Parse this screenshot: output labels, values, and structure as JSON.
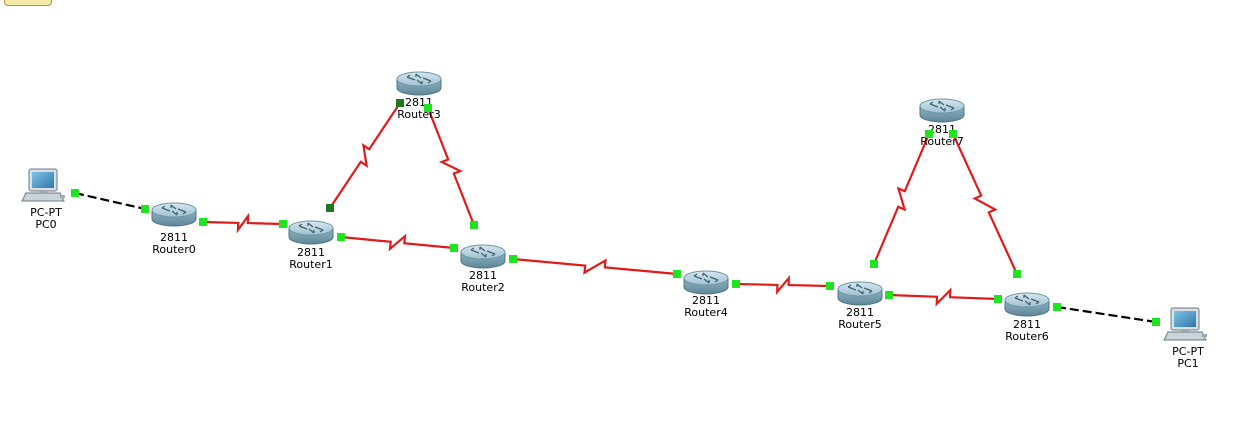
{
  "colors": {
    "serial_link": "#e11a1a",
    "ethernet_link": "#000000",
    "port_up": "#1ee61e",
    "port_dark": "#1f7a1f",
    "router_body": "#7fa7b9",
    "router_top": "#b9d3de",
    "pc_screen": "#3e8fc0"
  },
  "devices": [
    {
      "id": "pc0",
      "type": "pc",
      "icon": "pc-icon",
      "model": "PC-PT",
      "name": "PC0"
    },
    {
      "id": "router0",
      "type": "router",
      "icon": "router-icon",
      "model": "2811",
      "name": "Router0"
    },
    {
      "id": "router1",
      "type": "router",
      "icon": "router-icon",
      "model": "2811",
      "name": "Router1"
    },
    {
      "id": "router3",
      "type": "router",
      "icon": "router-icon",
      "model": "2811",
      "name": "Router3"
    },
    {
      "id": "router2",
      "type": "router",
      "icon": "router-icon",
      "model": "2811",
      "name": "Router2"
    },
    {
      "id": "router4",
      "type": "router",
      "icon": "router-icon",
      "model": "2811",
      "name": "Router4"
    },
    {
      "id": "router5",
      "type": "router",
      "icon": "router-icon",
      "model": "2811",
      "name": "Router5"
    },
    {
      "id": "router7",
      "type": "router",
      "icon": "router-icon",
      "model": "2811",
      "name": "Router7"
    },
    {
      "id": "router6",
      "type": "router",
      "icon": "router-icon",
      "model": "2811",
      "name": "Router6"
    },
    {
      "id": "pc1",
      "type": "pc",
      "icon": "pc-icon",
      "model": "PC-PT",
      "name": "PC1"
    }
  ],
  "links": [
    {
      "from": "pc0",
      "to": "router0",
      "kind": "ethernet"
    },
    {
      "from": "router0",
      "to": "router1",
      "kind": "serial"
    },
    {
      "from": "router1",
      "to": "router3",
      "kind": "serial"
    },
    {
      "from": "router3",
      "to": "router2",
      "kind": "serial"
    },
    {
      "from": "router1",
      "to": "router2",
      "kind": "serial"
    },
    {
      "from": "router2",
      "to": "router4",
      "kind": "serial"
    },
    {
      "from": "router4",
      "to": "router5",
      "kind": "serial"
    },
    {
      "from": "router5",
      "to": "router7",
      "kind": "serial"
    },
    {
      "from": "router7",
      "to": "router6",
      "kind": "serial"
    },
    {
      "from": "router5",
      "to": "router6",
      "kind": "serial"
    },
    {
      "from": "router6",
      "to": "pc1",
      "kind": "ethernet"
    }
  ]
}
